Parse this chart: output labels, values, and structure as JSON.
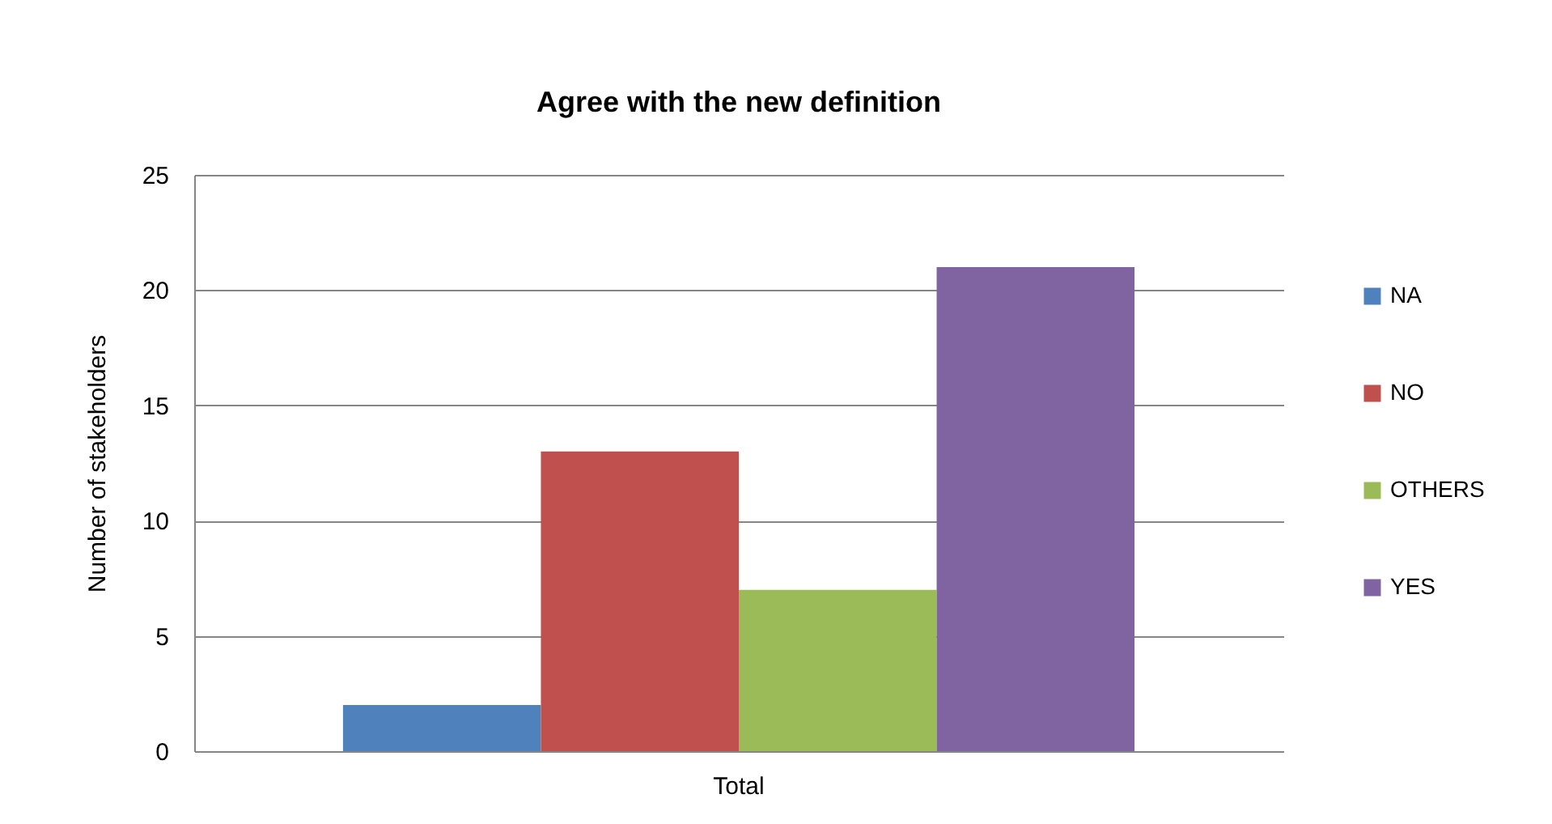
{
  "chart_data": {
    "type": "bar",
    "title": "Agree with the new definition",
    "ylabel": "Number of stakeholders",
    "categories": [
      "Total"
    ],
    "series": [
      {
        "name": "NA",
        "color": "#4f81bd",
        "values": [
          2
        ]
      },
      {
        "name": "NO",
        "color": "#c0504d",
        "values": [
          13
        ]
      },
      {
        "name": "OTHERS",
        "color": "#9bbb59",
        "values": [
          7
        ]
      },
      {
        "name": "YES",
        "color": "#8064a2",
        "values": [
          21
        ]
      }
    ],
    "ylim": [
      0,
      25
    ],
    "yticks": [
      0,
      5,
      10,
      15,
      20,
      25
    ],
    "grid": "y",
    "legend": "right"
  }
}
